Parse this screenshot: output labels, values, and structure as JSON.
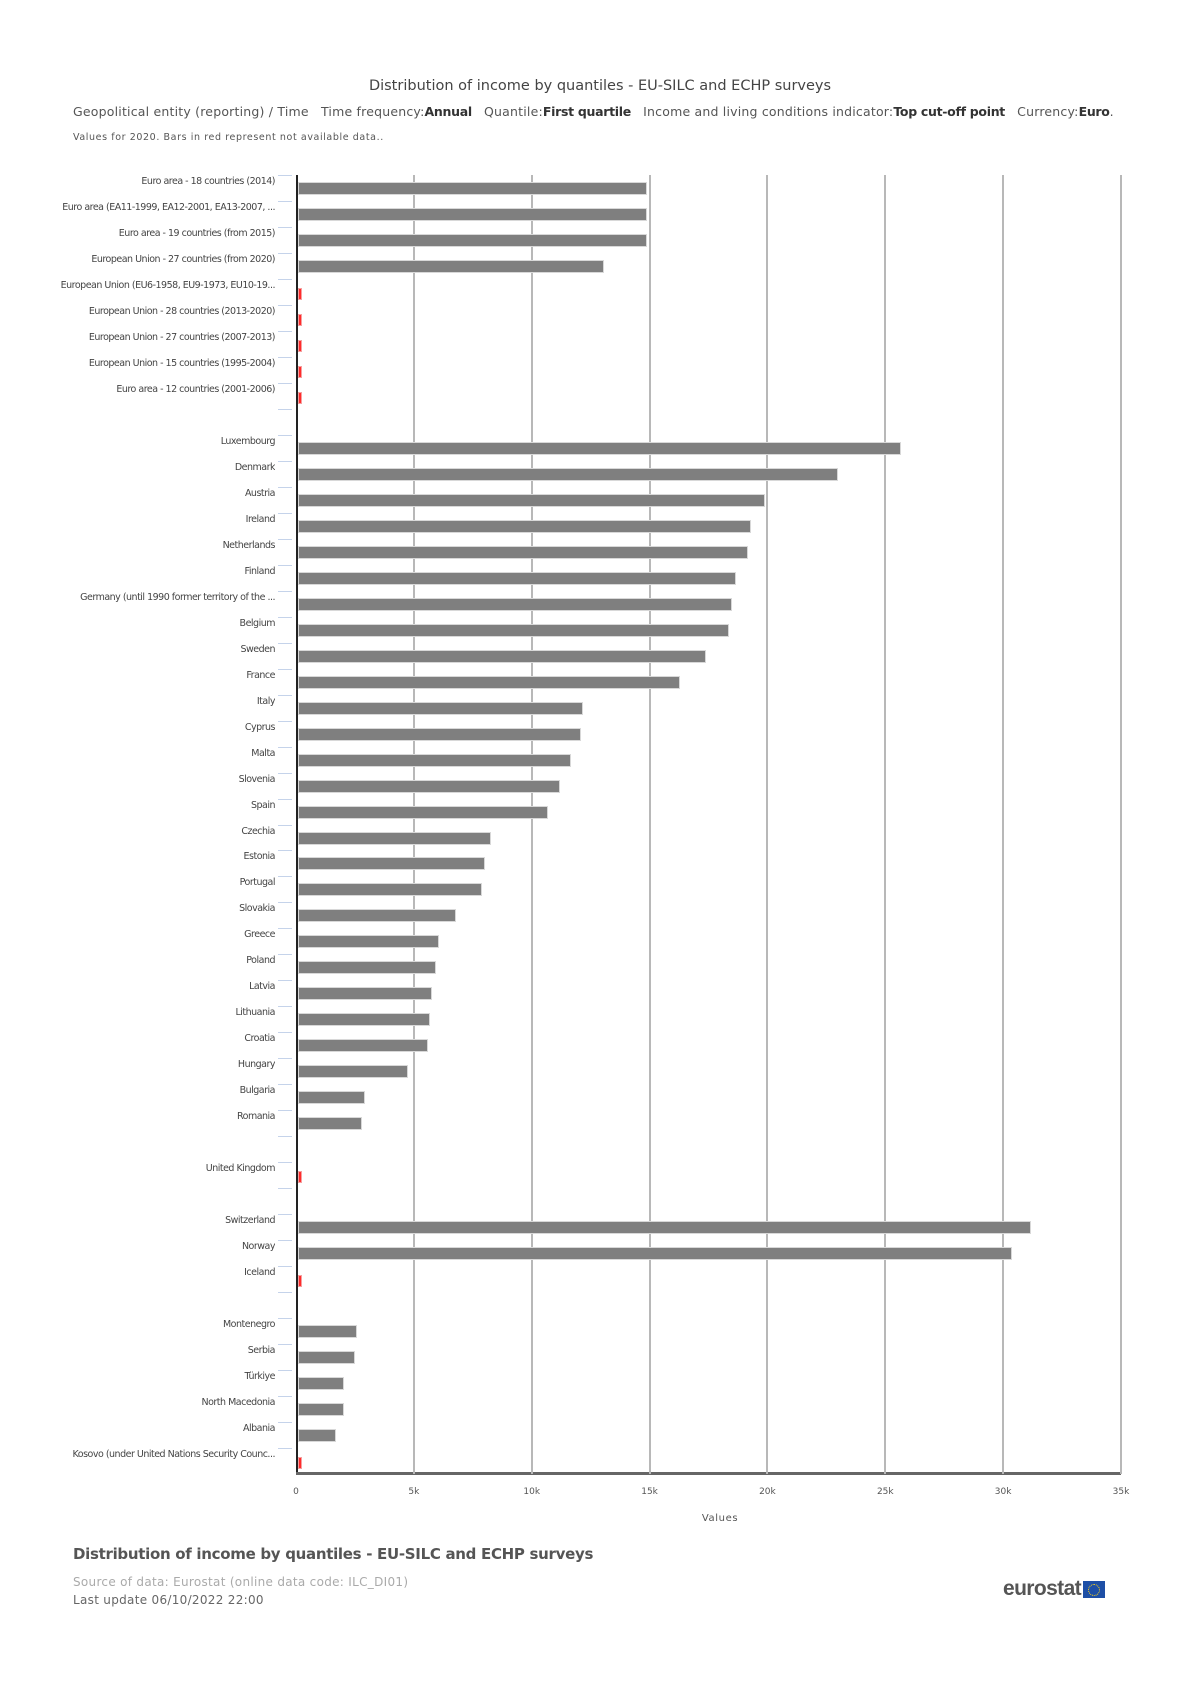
{
  "header": {
    "title": "Distribution of income by quantiles - EU-SILC and ECHP surveys",
    "subtitle": {
      "dimension": "Geopolitical entity (reporting) / Time",
      "time_frequency_label": "Time frequency:",
      "time_frequency_value": "Annual",
      "quantile_label": "Quantile:",
      "quantile_value": "First quartile",
      "indicator_label": "Income and living conditions indicator:",
      "indicator_value": "Top cut-off point",
      "currency_label": "Currency:",
      "currency_value": "Euro",
      "end": "."
    },
    "note": "Values for 2020. Bars in red represent not available data.."
  },
  "footer": {
    "title": "Distribution of income by quantiles - EU-SILC and ECHP surveys",
    "source": "Source of data: Eurostat (online data code: ILC_DI01)",
    "last_update": "Last update 06/10/2022 22:00",
    "logo_text": "eurostat"
  },
  "colors": {
    "bar": "#7f7f7f",
    "not_available": "#ff2b2b",
    "grid": "#b8b8b8"
  },
  "chart_data": {
    "type": "bar",
    "orientation": "horizontal",
    "title": "Distribution of income by quantiles - EU-SILC and ECHP surveys",
    "xlabel": "Values",
    "ylabel": "",
    "xlim": [
      0,
      35000
    ],
    "x_ticks": [
      "0",
      "5k",
      "10k",
      "15k",
      "20k",
      "25k",
      "30k",
      "35k"
    ],
    "grid": true,
    "legend": null,
    "categories": [
      "Euro area - 18 countries (2014)",
      "Euro area (EA11-1999, EA12-2001, EA13-2007, ...",
      "Euro area - 19 countries (from 2015)",
      "European Union - 27 countries (from 2020)",
      "European Union (EU6-1958, EU9-1973, EU10-19...",
      "European Union - 28 countries (2013-2020)",
      "European Union - 27 countries (2007-2013)",
      "European Union - 15 countries (1995-2004)",
      "Euro area - 12 countries (2001-2006)",
      "",
      "Luxembourg",
      "Denmark",
      "Austria",
      "Ireland",
      "Netherlands",
      "Finland",
      "Germany (until 1990 former territory of the ...",
      "Belgium",
      "Sweden",
      "France",
      "Italy",
      "Cyprus",
      "Malta",
      "Slovenia",
      "Spain",
      "Czechia",
      "Estonia",
      "Portugal",
      "Slovakia",
      "Greece",
      "Poland",
      "Latvia",
      "Lithuania",
      "Croatia",
      "Hungary",
      "Bulgaria",
      "Romania",
      "",
      "United Kingdom",
      "",
      "Switzerland",
      "Norway",
      "Iceland",
      "",
      "Montenegro",
      "Serbia",
      "Türkiye",
      "North Macedonia",
      "Albania",
      "Kosovo (under United Nations Security Counc..."
    ],
    "values": [
      14800,
      14800,
      14800,
      13000,
      null,
      null,
      null,
      null,
      null,
      null,
      25600,
      22900,
      19800,
      19200,
      19100,
      18600,
      18400,
      18300,
      17300,
      16200,
      12100,
      12000,
      11600,
      11100,
      10600,
      8200,
      7950,
      7800,
      6700,
      6000,
      5850,
      5700,
      5600,
      5500,
      4650,
      2850,
      2700,
      null,
      null,
      null,
      31100,
      30300,
      null,
      null,
      2500,
      2400,
      1950,
      1950,
      1600,
      null
    ],
    "not_available": [
      "European Union (EU6-1958, EU9-1973, EU10-19...",
      "European Union - 28 countries (2013-2020)",
      "European Union - 27 countries (2007-2013)",
      "European Union - 15 countries (1995-2004)",
      "Euro area - 12 countries (2001-2006)",
      "United Kingdom",
      "Iceland",
      "Kosovo (under United Nations Security Counc..."
    ]
  }
}
